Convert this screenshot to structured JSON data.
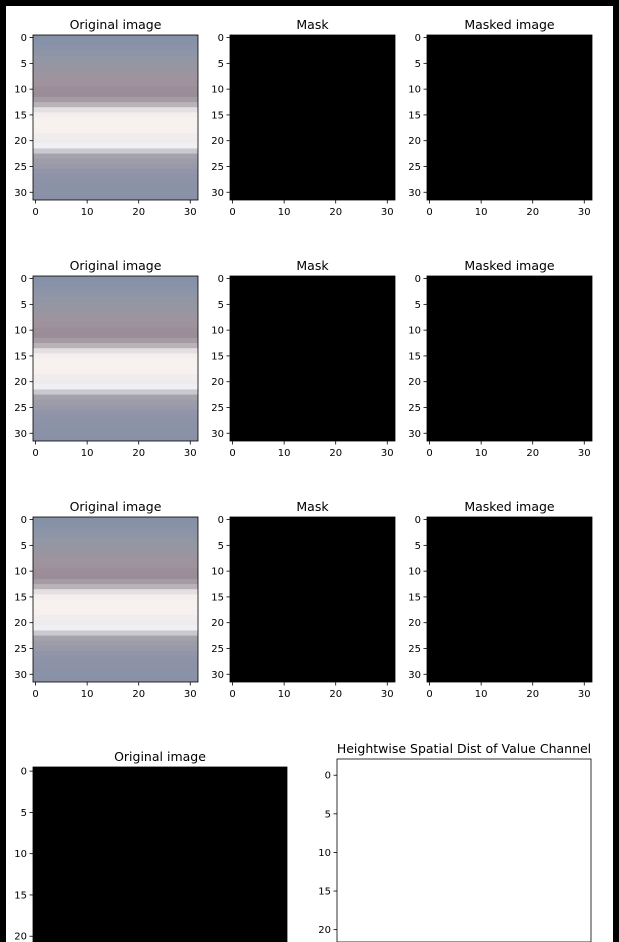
{
  "chart_data": [
    {
      "type": "heatmap",
      "title": "Original image",
      "xticks": [
        0,
        10,
        20,
        30
      ],
      "yticks": [
        0,
        5,
        10,
        15,
        20,
        25,
        30
      ],
      "xlim": [
        -0.5,
        31.5
      ],
      "ylim": [
        31.5,
        -0.5
      ],
      "content": "photo"
    },
    {
      "type": "heatmap",
      "title": "Mask",
      "xticks": [
        0,
        10,
        20,
        30
      ],
      "yticks": [
        0,
        5,
        10,
        15,
        20,
        25,
        30
      ],
      "xlim": [
        -0.5,
        31.5
      ],
      "ylim": [
        31.5,
        -0.5
      ],
      "content": "black"
    },
    {
      "type": "heatmap",
      "title": "Masked image",
      "xticks": [
        0,
        10,
        20,
        30
      ],
      "yticks": [
        0,
        5,
        10,
        15,
        20,
        25,
        30
      ],
      "xlim": [
        -0.5,
        31.5
      ],
      "ylim": [
        31.5,
        -0.5
      ],
      "content": "black"
    },
    {
      "type": "heatmap",
      "title": "Original image",
      "xticks": [
        0,
        10,
        20,
        30
      ],
      "yticks": [
        0,
        5,
        10,
        15,
        20,
        25,
        30
      ],
      "xlim": [
        -0.5,
        31.5
      ],
      "ylim": [
        31.5,
        -0.5
      ],
      "content": "photo"
    },
    {
      "type": "heatmap",
      "title": "Mask",
      "xticks": [
        0,
        10,
        20,
        30
      ],
      "yticks": [
        0,
        5,
        10,
        15,
        20,
        25,
        30
      ],
      "xlim": [
        -0.5,
        31.5
      ],
      "ylim": [
        31.5,
        -0.5
      ],
      "content": "black"
    },
    {
      "type": "heatmap",
      "title": "Masked image",
      "xticks": [
        0,
        10,
        20,
        30
      ],
      "yticks": [
        0,
        5,
        10,
        15,
        20,
        25,
        30
      ],
      "xlim": [
        -0.5,
        31.5
      ],
      "ylim": [
        31.5,
        -0.5
      ],
      "content": "black"
    },
    {
      "type": "heatmap",
      "title": "Original image",
      "xticks": [
        0,
        10,
        20,
        30
      ],
      "yticks": [
        0,
        5,
        10,
        15,
        20,
        25,
        30
      ],
      "xlim": [
        -0.5,
        31.5
      ],
      "ylim": [
        31.5,
        -0.5
      ],
      "content": "photo"
    },
    {
      "type": "heatmap",
      "title": "Mask",
      "xticks": [
        0,
        10,
        20,
        30
      ],
      "yticks": [
        0,
        5,
        10,
        15,
        20,
        25,
        30
      ],
      "xlim": [
        -0.5,
        31.5
      ],
      "ylim": [
        31.5,
        -0.5
      ],
      "content": "black"
    },
    {
      "type": "heatmap",
      "title": "Masked image",
      "xticks": [
        0,
        10,
        20,
        30
      ],
      "yticks": [
        0,
        5,
        10,
        15,
        20,
        25,
        30
      ],
      "xlim": [
        -0.5,
        31.5
      ],
      "ylim": [
        31.5,
        -0.5
      ],
      "content": "black"
    },
    {
      "type": "heatmap",
      "title": "Original image",
      "xticks": [],
      "yticks": [
        0,
        5,
        10,
        15,
        20
      ],
      "ylim": [
        20.7,
        -0.5
      ],
      "content": "black"
    },
    {
      "type": "heatmap",
      "title": "Heightwise Spatial Dist of Value Channel",
      "xticks": [],
      "yticks": [
        0,
        5,
        10,
        15,
        20
      ],
      "ylim": [
        21.6,
        -2.1
      ],
      "content": "white"
    }
  ],
  "colors": {
    "figure_background": "#ffffff",
    "outer_border": "#000000",
    "black_fill": "#000000",
    "white_fill": "#ffffff",
    "photo_rows": [
      "#8591a7",
      "#8792a8",
      "#8a93a8",
      "#8e95a7",
      "#9296a5",
      "#9596a3",
      "#9895a1",
      "#9b95a0",
      "#9e949e",
      "#9f929c",
      "#9c8e99",
      "#9a8c98",
      "#a49ba5",
      "#b9b2b9",
      "#e4dfe0",
      "#f4eeed",
      "#f7f1ef",
      "#f8f2ef",
      "#f6f0ee",
      "#f2edec",
      "#eeebee",
      "#f0eff3",
      "#cbc8cf",
      "#a4a2ad",
      "#9e9ca8",
      "#999aa9",
      "#9295a9",
      "#8e93a8",
      "#8c92a8",
      "#8b92a8",
      "#8a92a8",
      "#8a91a7"
    ]
  }
}
